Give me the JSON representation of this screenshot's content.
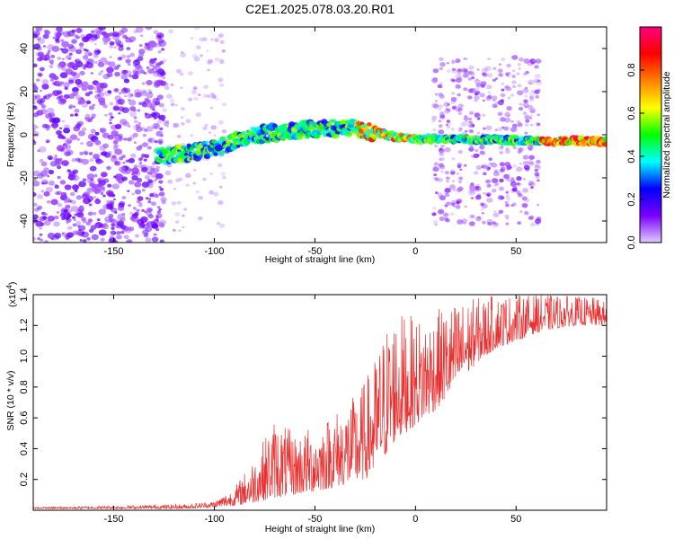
{
  "chart_data": [
    {
      "type": "heatmap",
      "title": "C2E1.2025.078.03.20.R01",
      "xlabel": "Height of straight line (km)",
      "ylabel": "Frequency (Hz)",
      "xlim": [
        -190,
        95
      ],
      "ylim": [
        -50,
        50
      ],
      "x_ticks": [
        -150,
        -100,
        -50,
        0,
        50
      ],
      "y_ticks": [
        -40,
        -20,
        0,
        20,
        40
      ],
      "colorbar": {
        "label": "Normalized spectral amplitude",
        "range": [
          0.0,
          1.0
        ],
        "ticks": [
          "0.0",
          "0.2",
          "0.4",
          "0.6",
          "0.8"
        ],
        "colors": [
          "#e0ccff",
          "#7a00ff",
          "#0000ff",
          "#00ffff",
          "#00ff00",
          "#ffff00",
          "#ff8000",
          "#ff0000",
          "#ff007f"
        ]
      },
      "ridge": {
        "x": [
          -128,
          -110,
          -95,
          -80,
          -60,
          -45,
          -30,
          -20,
          -10,
          0,
          10,
          30,
          60,
          90
        ],
        "y": [
          -10,
          -8,
          -5,
          0,
          2,
          3,
          3,
          1,
          -1,
          -2,
          -2,
          -2,
          -3,
          -3
        ]
      }
    },
    {
      "type": "line",
      "xlabel": "Height of straight line (km)",
      "ylabel": "SNR (10 * v/v)",
      "y_multiplier": "(x10",
      "y_multiplier_exp": "4",
      "xlim": [
        -190,
        95
      ],
      "ylim": [
        0,
        1.4
      ],
      "x_ticks": [
        -150,
        -100,
        -50,
        0,
        50
      ],
      "y_ticks": [
        0.2,
        0.4,
        0.6,
        0.8,
        1.0,
        1.2,
        1.4
      ],
      "y_tick_labels": [
        "0.2",
        "0.4",
        "0.6",
        "0.8",
        "1.0",
        "1.2",
        "1.4"
      ],
      "line_color": "#e83030",
      "envelope": {
        "x": [
          -190,
          -150,
          -115,
          -100,
          -90,
          -80,
          -70,
          -60,
          -50,
          -40,
          -30,
          -25,
          -20,
          -15,
          -10,
          0,
          10,
          20,
          30,
          40,
          50,
          60,
          70,
          80,
          90,
          95
        ],
        "low": [
          0.01,
          0.01,
          0.01,
          0.02,
          0.03,
          0.05,
          0.08,
          0.1,
          0.12,
          0.15,
          0.18,
          0.2,
          0.25,
          0.35,
          0.45,
          0.55,
          0.65,
          0.8,
          0.95,
          1.05,
          1.1,
          1.15,
          1.18,
          1.2,
          1.2,
          1.2
        ],
        "high": [
          0.02,
          0.03,
          0.04,
          0.06,
          0.15,
          0.35,
          0.6,
          0.5,
          0.55,
          0.65,
          0.75,
          0.85,
          1.0,
          1.2,
          1.3,
          1.25,
          1.3,
          1.35,
          1.38,
          1.4,
          1.4,
          1.4,
          1.4,
          1.39,
          1.38,
          1.35
        ]
      }
    }
  ]
}
